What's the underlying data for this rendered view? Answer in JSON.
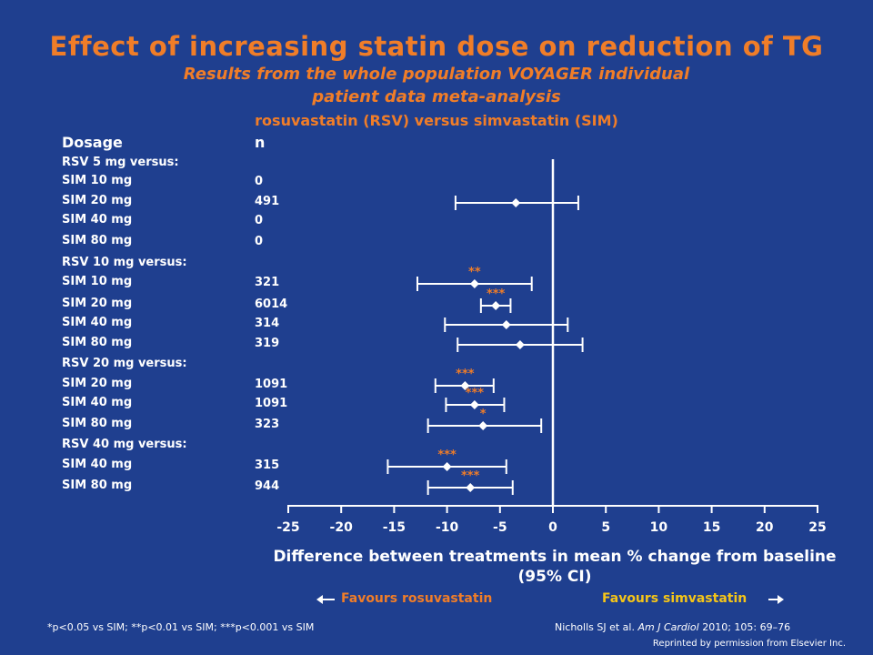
{
  "title": "Effect of increasing statin dose on reduction of TG",
  "subtitle_line1": "Results from the whole population VOYAGER individual",
  "subtitle_line2": "patient data meta-analysis",
  "subtitle_line3": "rosuvastatin (RSV) versus simvastatin (SIM)",
  "col_dosage": "Dosage",
  "col_n": "n",
  "favours_rsv": "Favours rosuvastatin",
  "favours_sim": "Favours simvastatin",
  "footnote_left": "*p<0.05 vs SIM; **p<0.01 vs SIM; ***p<0.001 vs SIM",
  "citation_authors": "Nicholls SJ et al.",
  "citation_journal": "Am J Cardiol",
  "citation_rest": "2010; 105: 69–76",
  "reprint": "Reprinted by permission from Elsevier Inc.",
  "colors": {
    "background": "#1f3f8f",
    "accent_orange": "#f07d28",
    "accent_yellow": "#f5c518",
    "marks": "#ffffff"
  },
  "chart_data": {
    "type": "forest",
    "xlabel": "Difference between treatments in mean % change from baseline (95% CI)",
    "xlim": [
      -25,
      25
    ],
    "xticks": [
      -25,
      -20,
      -15,
      -10,
      -5,
      0,
      5,
      10,
      15,
      20,
      25
    ],
    "reference_line": 0,
    "rows": [
      {
        "kind": "group",
        "label": "RSV 5 mg versus:"
      },
      {
        "kind": "row",
        "label": "SIM 10 mg",
        "n": "0",
        "est": null,
        "lo": null,
        "hi": null,
        "sig": ""
      },
      {
        "kind": "row",
        "label": "SIM 20 mg",
        "n": "491",
        "est": -3.5,
        "lo": -9.2,
        "hi": 2.4,
        "sig": ""
      },
      {
        "kind": "row",
        "label": "SIM 40 mg",
        "n": "0",
        "est": null,
        "lo": null,
        "hi": null,
        "sig": ""
      },
      {
        "kind": "row",
        "label": "SIM 80 mg",
        "n": "0",
        "est": null,
        "lo": null,
        "hi": null,
        "sig": ""
      },
      {
        "kind": "group",
        "label": "RSV 10 mg versus:"
      },
      {
        "kind": "row",
        "label": "SIM 10 mg",
        "n": "321",
        "est": -7.4,
        "lo": -12.8,
        "hi": -2.0,
        "sig": "**"
      },
      {
        "kind": "row",
        "label": "SIM 20 mg",
        "n": "6014",
        "est": -5.4,
        "lo": -6.8,
        "hi": -4.0,
        "sig": "***"
      },
      {
        "kind": "row",
        "label": "SIM 40 mg",
        "n": "314",
        "est": -4.4,
        "lo": -10.2,
        "hi": 1.4,
        "sig": ""
      },
      {
        "kind": "row",
        "label": "SIM 80 mg",
        "n": "319",
        "est": -3.1,
        "lo": -9.0,
        "hi": 2.8,
        "sig": ""
      },
      {
        "kind": "group",
        "label": "RSV 20 mg versus:"
      },
      {
        "kind": "row",
        "label": "SIM 20 mg",
        "n": "1091",
        "est": -8.3,
        "lo": -11.1,
        "hi": -5.6,
        "sig": "***"
      },
      {
        "kind": "row",
        "label": "SIM 40 mg",
        "n": "1091",
        "est": -7.4,
        "lo": -10.1,
        "hi": -4.6,
        "sig": "***"
      },
      {
        "kind": "row",
        "label": "SIM 80 mg",
        "n": "323",
        "est": -6.6,
        "lo": -11.8,
        "hi": -1.1,
        "sig": "*"
      },
      {
        "kind": "group",
        "label": "RSV 40 mg versus:"
      },
      {
        "kind": "row",
        "label": "SIM 40 mg",
        "n": "315",
        "est": -10.0,
        "lo": -15.6,
        "hi": -4.4,
        "sig": "***"
      },
      {
        "kind": "row",
        "label": "SIM 80 mg",
        "n": "944",
        "est": -7.8,
        "lo": -11.8,
        "hi": -3.8,
        "sig": "***"
      }
    ]
  }
}
